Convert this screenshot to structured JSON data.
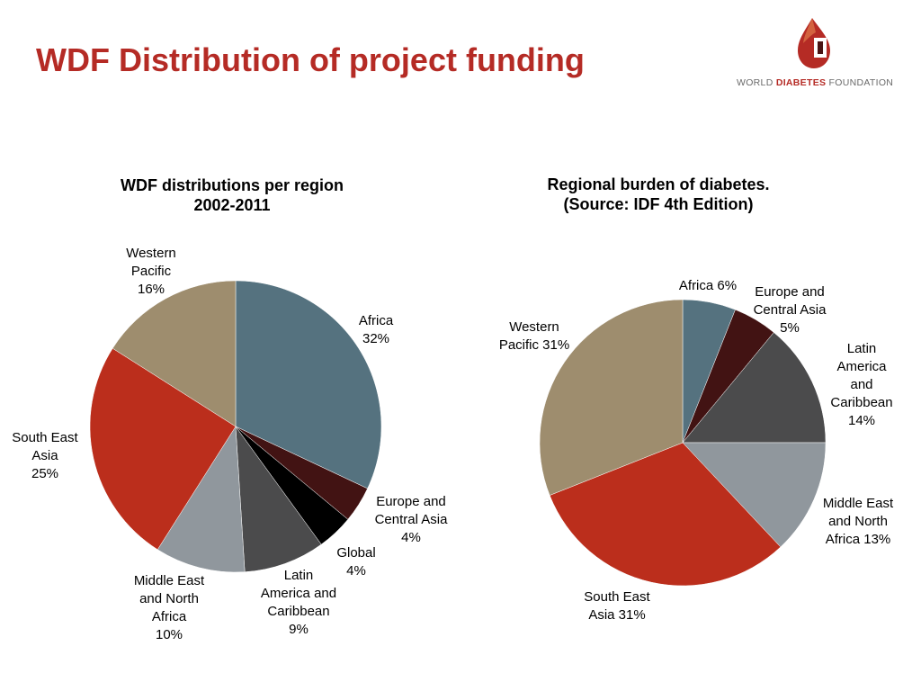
{
  "slide": {
    "title": "WDF Distribution of project funding"
  },
  "logo": {
    "text_part1": "WORLD ",
    "text_part2": "DIABETES",
    "text_part3": " FOUNDATION",
    "colors": {
      "drop": "#b52b25",
      "dark": "#4a1414"
    }
  },
  "chart_data": [
    {
      "type": "pie",
      "title": [
        "WDF distributions per region",
        "2002-2011"
      ],
      "slices": [
        {
          "name": "Africa",
          "value": 32,
          "color": "#55727f",
          "label": [
            "Africa",
            "32%"
          ]
        },
        {
          "name": "Europe and Central Asia",
          "value": 4,
          "color": "#421313",
          "label": [
            "Europe and",
            "Central Asia",
            "4%"
          ]
        },
        {
          "name": "Global",
          "value": 4,
          "color": "#000000",
          "label": [
            "Global",
            "4%"
          ]
        },
        {
          "name": "Latin America and Caribbean",
          "value": 9,
          "color": "#4b4b4c",
          "label": [
            "Latin",
            "America and",
            "Caribbean",
            "9%"
          ]
        },
        {
          "name": "Middle East and North Africa",
          "value": 10,
          "color": "#90979d",
          "label": [
            "Middle East",
            "and North",
            "Africa",
            "10%"
          ]
        },
        {
          "name": "South East Asia",
          "value": 25,
          "color": "#bb2e1c",
          "label": [
            "South East",
            "Asia",
            "25%"
          ]
        },
        {
          "name": "Western Pacific",
          "value": 16,
          "color": "#9e8d6e",
          "label": [
            "Western",
            "Pacific",
            "16%"
          ]
        }
      ],
      "start": "12 o'clock",
      "direction": "clockwise"
    },
    {
      "type": "pie",
      "title": [
        "Regional burden of diabetes.",
        "(Source: IDF 4th Edition)"
      ],
      "slices": [
        {
          "name": "Africa",
          "value": 6,
          "color": "#55727f",
          "label": [
            "Africa 6%"
          ]
        },
        {
          "name": "Europe and Central Asia",
          "value": 5,
          "color": "#421313",
          "label": [
            "Europe and",
            "Central Asia",
            "5%"
          ]
        },
        {
          "name": "Latin America and Caribbean",
          "value": 14,
          "color": "#4b4b4c",
          "label": [
            "Latin",
            "America",
            "and",
            "Caribbean",
            "14%"
          ]
        },
        {
          "name": "Middle East and North Africa",
          "value": 13,
          "color": "#90979d",
          "label": [
            "Middle East",
            "and North",
            "Africa 13%"
          ]
        },
        {
          "name": "South East Asia",
          "value": 31,
          "color": "#bb2e1c",
          "label": [
            "South East",
            "Asia 31%"
          ]
        },
        {
          "name": "Western Pacific",
          "value": 31,
          "color": "#9e8d6e",
          "label": [
            "Western",
            "Pacific 31%"
          ]
        }
      ],
      "start": "12 o'clock",
      "direction": "clockwise"
    }
  ]
}
